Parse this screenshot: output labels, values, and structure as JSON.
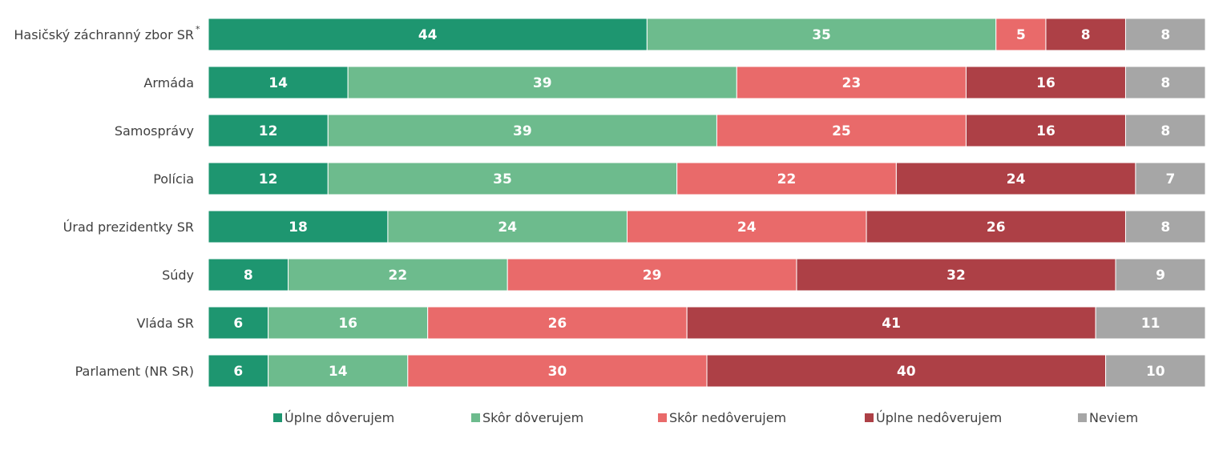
{
  "chart_data": {
    "type": "bar",
    "orientation": "horizontal",
    "stacked": true,
    "xlim": [
      0,
      100
    ],
    "categories": [
      "Hasičský záchranný zbor SR",
      "Armáda",
      "Samosprávy",
      "Polícia",
      "Úrad prezidentky SR",
      "Súdy",
      "Vláda SR",
      "Parlament (NR SR)"
    ],
    "category_note": [
      "*",
      "",
      "",
      "",
      "",
      "",
      "",
      ""
    ],
    "series": [
      {
        "name": "Úplne dôverujem",
        "color": "#1e9670",
        "values": [
          44,
          14,
          12,
          12,
          18,
          8,
          6,
          6
        ]
      },
      {
        "name": "Skôr dôverujem",
        "color": "#6dbb8d",
        "values": [
          35,
          39,
          39,
          35,
          24,
          22,
          16,
          14
        ]
      },
      {
        "name": "Skôr nedôverujem",
        "color": "#e96a6a",
        "values": [
          5,
          23,
          25,
          22,
          24,
          29,
          26,
          30
        ]
      },
      {
        "name": "Úplne nedôverujem",
        "color": "#ad4046",
        "values": [
          8,
          16,
          16,
          24,
          26,
          32,
          41,
          40
        ]
      },
      {
        "name": "Neviem",
        "color": "#a6a6a6",
        "values": [
          8,
          8,
          8,
          7,
          8,
          9,
          11,
          10
        ]
      }
    ],
    "legend_position": "bottom",
    "grid": false
  }
}
